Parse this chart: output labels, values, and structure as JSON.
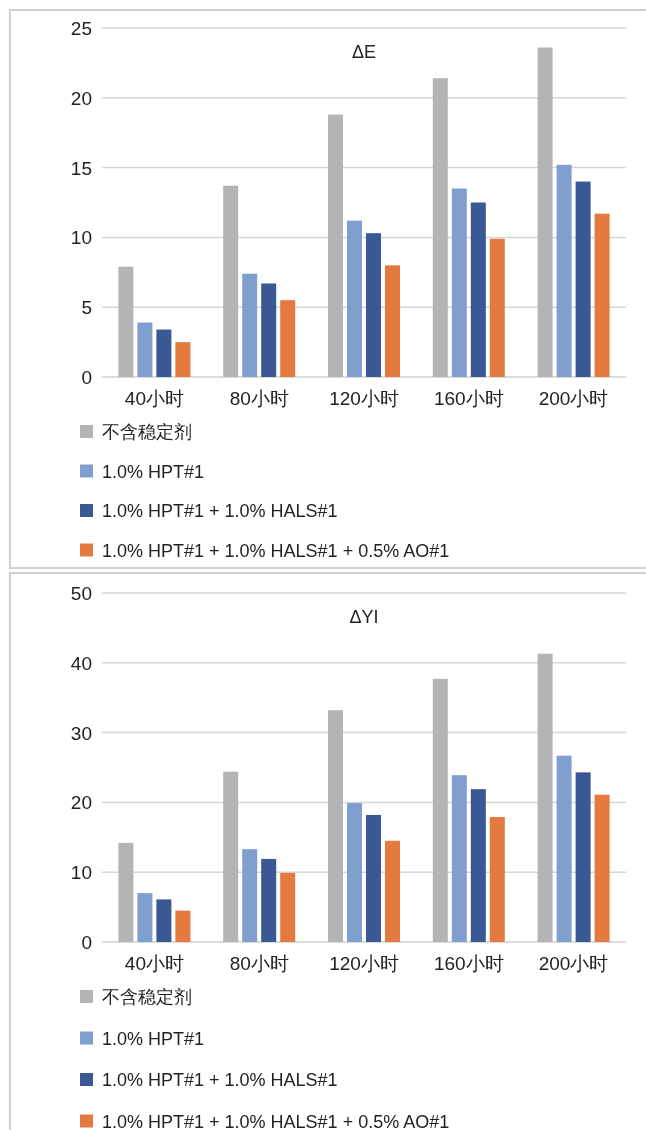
{
  "chart_data": [
    {
      "type": "bar",
      "title": "ΔE",
      "categories": [
        "40小时",
        "80小时",
        "120小时",
        "160小时",
        "200小时"
      ],
      "series": [
        {
          "name": "不含稳定剂",
          "color": "#b4b4b6",
          "values": [
            7.9,
            13.7,
            18.8,
            21.4,
            23.6
          ]
        },
        {
          "name": "1.0% HPT#1",
          "color": "#7f9fcf",
          "values": [
            3.9,
            7.4,
            11.2,
            13.5,
            15.2
          ]
        },
        {
          "name": "1.0% HPT#1 + 1.0% HALS#1",
          "color": "#3a5893",
          "values": [
            3.4,
            6.7,
            10.3,
            12.5,
            14.0
          ]
        },
        {
          "name": "1.0% HPT#1 + 1.0% HALS#1 + 0.5% AO#1",
          "color": "#e47a40",
          "values": [
            2.5,
            5.5,
            8.0,
            9.9,
            11.7
          ]
        }
      ],
      "ylim": [
        0,
        25
      ],
      "yticks": [
        0,
        5,
        10,
        15,
        20,
        25
      ],
      "grid": "y",
      "legend": "bottom"
    },
    {
      "type": "bar",
      "title": "ΔYI",
      "categories": [
        "40小时",
        "80小时",
        "120小时",
        "160小时",
        "200小时"
      ],
      "series": [
        {
          "name": "不含稳定剂",
          "color": "#b4b4b6",
          "values": [
            14.2,
            24.4,
            33.2,
            37.7,
            41.3
          ]
        },
        {
          "name": "1.0% HPT#1",
          "color": "#7f9fcf",
          "values": [
            7.0,
            13.3,
            19.9,
            23.9,
            26.7
          ]
        },
        {
          "name": "1.0% HPT#1 + 1.0% HALS#1",
          "color": "#3a5893",
          "values": [
            6.1,
            11.9,
            18.2,
            21.9,
            24.3
          ]
        },
        {
          "name": "1.0% HPT#1 + 1.0% HALS#1 + 0.5% AO#1",
          "color": "#e47a40",
          "values": [
            4.5,
            9.9,
            14.5,
            17.9,
            21.1
          ]
        }
      ],
      "ylim": [
        0,
        50
      ],
      "yticks": [
        0,
        10,
        20,
        30,
        40,
        50
      ],
      "grid": "y",
      "legend": "bottom"
    }
  ]
}
